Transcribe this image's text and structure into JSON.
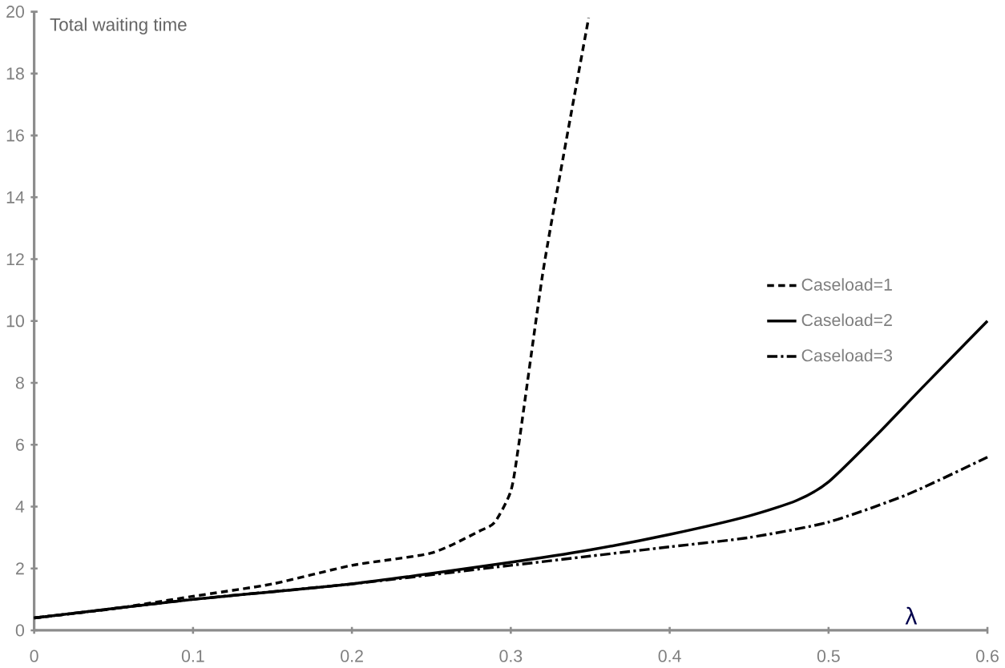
{
  "chart_data": {
    "type": "line",
    "ylabel": "Total waiting time",
    "xlabel": "λ",
    "xlim": [
      0,
      0.6
    ],
    "xticks": [
      0,
      0.1,
      0.2,
      0.3,
      0.4,
      0.5,
      0.6
    ],
    "ylim": [
      0,
      20
    ],
    "yticks": [
      0,
      2,
      4,
      6,
      8,
      10,
      12,
      14,
      16,
      18,
      20
    ],
    "grid": false,
    "legend": "right",
    "marker": "none",
    "series": [
      {
        "name": "Caseload=1",
        "color": "#000000",
        "line_style": "dashed",
        "x": [
          0,
          0.05,
          0.1,
          0.15,
          0.2,
          0.25,
          0.28,
          0.29,
          0.3,
          0.305,
          0.32,
          0.333,
          0.349
        ],
        "values": [
          0.4,
          0.7,
          1.1,
          1.5,
          2.1,
          2.5,
          3.2,
          3.5,
          4.5,
          6,
          11.5,
          15.3,
          19.8
        ]
      },
      {
        "name": "Caseload=2",
        "color": "#000000",
        "line_style": "solid",
        "x": [
          0,
          0.1,
          0.2,
          0.3,
          0.35,
          0.4,
          0.45,
          0.48,
          0.5,
          0.53,
          0.56,
          0.6
        ],
        "values": [
          0.4,
          1.0,
          1.5,
          2.2,
          2.6,
          3.1,
          3.7,
          4.2,
          4.8,
          6.3,
          7.9,
          10.0
        ]
      },
      {
        "name": "Caseload=3",
        "color": "#000000",
        "line_style": "dashdotted",
        "x": [
          0,
          0.1,
          0.2,
          0.3,
          0.35,
          0.4,
          0.45,
          0.5,
          0.55,
          0.6
        ],
        "values": [
          0.4,
          1.0,
          1.5,
          2.1,
          2.4,
          2.7,
          3.0,
          3.5,
          4.4,
          5.6
        ]
      }
    ]
  }
}
